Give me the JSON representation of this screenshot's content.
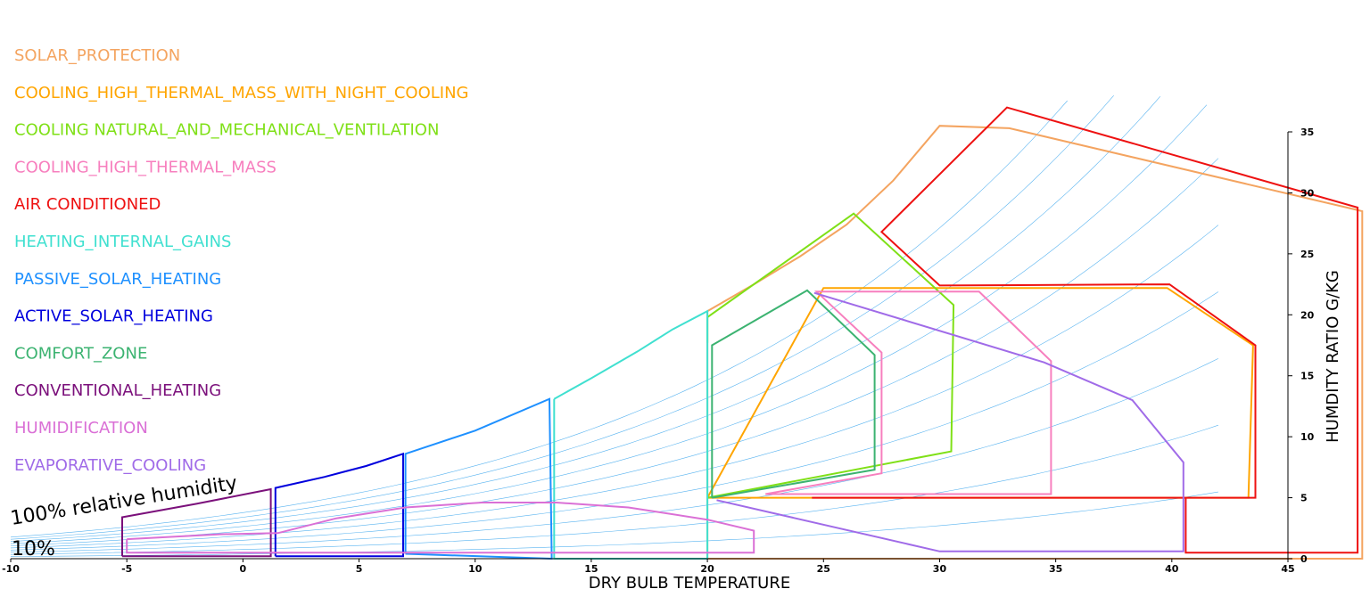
{
  "chart_data": {
    "type": "line",
    "xlabel": "DRY BULB TEMPERATURE",
    "ylabel": "HUMDITY RATIO G/KG",
    "xlim": [
      -10,
      45
    ],
    "ylim": [
      0,
      35
    ],
    "x_ticks": [
      -10,
      -5,
      0,
      5,
      10,
      15,
      20,
      25,
      30,
      35,
      40,
      45
    ],
    "y_ticks": [
      0,
      5,
      10,
      15,
      20,
      25,
      30,
      35
    ],
    "rh_labels": [
      "100% relative humidity",
      "10%"
    ],
    "legend_position": "top-left",
    "series": [
      {
        "name": "SOLAR_PROTECTION",
        "color": "#F4A460",
        "points": [
          [
            20,
            0
          ],
          [
            20,
            20.3
          ],
          [
            22,
            22.5
          ],
          [
            24,
            24.8
          ],
          [
            26,
            27.4
          ],
          [
            28,
            31
          ],
          [
            30,
            35.5
          ],
          [
            33,
            35.3
          ],
          [
            48.2,
            28.5
          ],
          [
            48.2,
            0
          ],
          [
            20,
            0
          ]
        ]
      },
      {
        "name": "COOLING_HIGH_THERMAL_MASS_WITH_NIGHT_COOLING",
        "color": "#FFA500",
        "points": [
          [
            20,
            5
          ],
          [
            43.3,
            5
          ],
          [
            43.5,
            17.5
          ],
          [
            39.8,
            22.2
          ],
          [
            25,
            22.2
          ],
          [
            20,
            5
          ]
        ]
      },
      {
        "name": "COOLING NATURAL_AND_MECHANICAL_VENTILATION",
        "color": "#7FE017",
        "points": [
          [
            20,
            17.7
          ],
          [
            20,
            19.8
          ],
          [
            26.3,
            28.3
          ],
          [
            30.6,
            20.8
          ],
          [
            30.5,
            8.8
          ],
          [
            20,
            5
          ]
        ]
      },
      {
        "name": "COOLING_HIGH_THERMAL_MASS",
        "color": "#F77FBE",
        "points": [
          [
            22.5,
            5.3
          ],
          [
            34.8,
            5.3
          ],
          [
            34.8,
            16.2
          ],
          [
            31.7,
            21.9
          ],
          [
            24.7,
            21.9
          ],
          [
            27.5,
            16.9
          ],
          [
            27.5,
            7
          ],
          [
            22.5,
            5.3
          ]
        ]
      },
      {
        "name": "AIR CONDITIONED",
        "color": "#EE1111",
        "points": [
          [
            24.5,
            5
          ],
          [
            43.6,
            5
          ],
          [
            43.6,
            17.5
          ],
          [
            39.9,
            22.5
          ],
          [
            30,
            22.4
          ],
          [
            27.5,
            26.8
          ],
          [
            32.9,
            37
          ],
          [
            48,
            28.8
          ],
          [
            48,
            0.5
          ],
          [
            40.6,
            0.5
          ],
          [
            40.6,
            5
          ]
        ]
      },
      {
        "name": "HEATING_INTERNAL_GAINS",
        "color": "#40E0D0",
        "points": [
          [
            13.4,
            13.1
          ],
          [
            15,
            14.8
          ],
          [
            17,
            17
          ],
          [
            18.5,
            18.8
          ],
          [
            20,
            20.3
          ],
          [
            20,
            0
          ],
          [
            13.4,
            0
          ],
          [
            13.4,
            13.1
          ]
        ]
      },
      {
        "name": "PASSIVE_SOLAR_HEATING",
        "color": "#1E90FF",
        "points": [
          [
            7,
            0.4
          ],
          [
            7,
            8.6
          ],
          [
            10,
            10.5
          ],
          [
            13.2,
            13.1
          ],
          [
            13.3,
            0
          ],
          [
            7,
            0.4
          ]
        ]
      },
      {
        "name": "ACTIVE_SOLAR_HEATING",
        "color": "#0000DD",
        "points": [
          [
            1.4,
            0.2
          ],
          [
            1.4,
            5.8
          ],
          [
            3.5,
            6.7
          ],
          [
            5.3,
            7.6
          ],
          [
            6.9,
            8.6
          ],
          [
            6.9,
            0.2
          ],
          [
            1.4,
            0.2
          ]
        ]
      },
      {
        "name": "COMFORT_ZONE",
        "color": "#3CB371",
        "points": [
          [
            20.2,
            5
          ],
          [
            27.2,
            7.3
          ],
          [
            27.2,
            16.7
          ],
          [
            24.3,
            22
          ],
          [
            20.2,
            17.5
          ],
          [
            20.2,
            5
          ]
        ]
      },
      {
        "name": "CONVENTIONAL_HEATING",
        "color": "#7B107B",
        "points": [
          [
            -5.2,
            0.2
          ],
          [
            -5.2,
            3.4
          ],
          [
            -2,
            4.5
          ],
          [
            1.2,
            5.7
          ],
          [
            1.2,
            0.2
          ],
          [
            -5.2,
            0.2
          ]
        ]
      },
      {
        "name": "HUMIDIFICATION",
        "color": "#DA70D6",
        "points": [
          [
            -5,
            1.6
          ],
          [
            -1,
            2
          ],
          [
            1.5,
            2.1
          ],
          [
            4,
            3.3
          ],
          [
            7,
            4.2
          ],
          [
            10.3,
            4.6
          ],
          [
            13.5,
            4.6
          ],
          [
            16.6,
            4.2
          ],
          [
            20,
            3.2
          ],
          [
            22,
            2.3
          ],
          [
            22,
            0.5
          ],
          [
            -5,
            0.5
          ],
          [
            -5,
            1.6
          ]
        ]
      },
      {
        "name": "EVAPORATIVE_COOLING",
        "color": "#A06BE8",
        "points": [
          [
            20.4,
            4.8
          ],
          [
            30,
            0.6
          ],
          [
            40.5,
            0.6
          ],
          [
            40.5,
            7.9
          ],
          [
            38.3,
            13
          ],
          [
            34.5,
            16.1
          ],
          [
            24.6,
            21.8
          ]
        ]
      }
    ]
  }
}
